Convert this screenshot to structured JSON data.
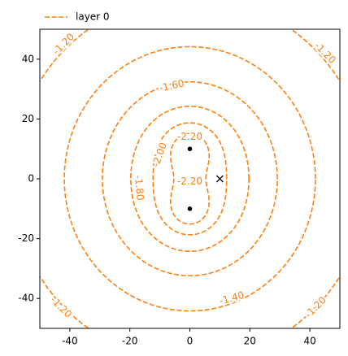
{
  "chart_data": {
    "type": "contour",
    "series": [
      {
        "name": "layer 0",
        "color": "#ff7f0e"
      }
    ],
    "levels": [
      {
        "value": -1.2,
        "label": "-1.20"
      },
      {
        "value": -1.4,
        "label": "-1.40"
      },
      {
        "value": -1.6,
        "label": "-1.60"
      },
      {
        "value": -1.8,
        "label": "-1.80"
      },
      {
        "value": -2.0,
        "label": "-2.00"
      },
      {
        "value": -2.2,
        "label": "-2.20"
      }
    ],
    "points": {
      "x": [
        0,
        0
      ],
      "y": [
        10,
        -10
      ]
    },
    "marker": {
      "x": 10,
      "y": 0
    },
    "xlim": [
      -50,
      50
    ],
    "ylim": [
      -50,
      50
    ],
    "xticks": [
      -40,
      -20,
      0,
      20,
      40
    ],
    "yticks": [
      -40,
      -20,
      0,
      20,
      40
    ],
    "legend": "upper left"
  }
}
